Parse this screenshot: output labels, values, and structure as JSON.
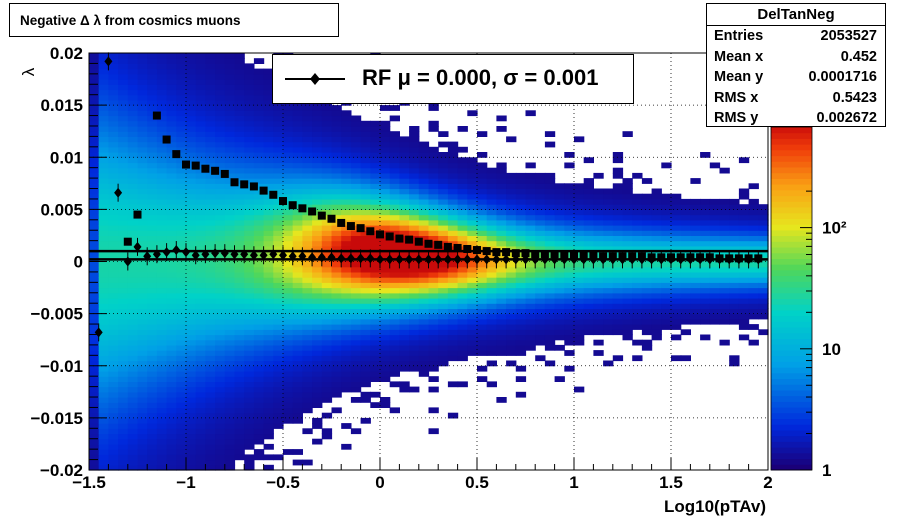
{
  "title": "Negative Δ λ from cosmics muons",
  "stats": {
    "name": "DelTanNeg",
    "rows": [
      {
        "label": "Entries",
        "value": "2053527"
      },
      {
        "label": "Mean x",
        "value": "0.452"
      },
      {
        "label": "Mean y",
        "value": "0.0001716"
      },
      {
        "label": "RMS x",
        "value": "0.5423"
      },
      {
        "label": "RMS y",
        "value": "0.002672"
      }
    ]
  },
  "legend": {
    "label": "RF μ =  0.000, σ =   0.001"
  },
  "chart_data": {
    "type": "heatmap",
    "xlabel": "Log10(pTAv)",
    "ylabel": "λ",
    "xlim": [
      -1.5,
      2
    ],
    "ylim": [
      -0.02,
      0.02
    ],
    "x_ticks": [
      "−1.5",
      "−1",
      "−0.5",
      "0",
      "0.5",
      "1",
      "1.5",
      "2"
    ],
    "y_ticks": [
      "−0.02",
      "−0.015",
      "−0.01",
      "−0.005",
      "0",
      "0.005",
      "0.01",
      "0.015",
      "0.02"
    ],
    "color_scale": {
      "log": true,
      "min": 1,
      "max": 1000,
      "labels": [
        "1",
        "10",
        "10²"
      ]
    },
    "grid": true,
    "series": [
      {
        "marker": "square",
        "x": [
          -1.3,
          -1.25,
          -1.15,
          -1.1,
          -1.05,
          -1.0,
          -0.95,
          -0.9,
          -0.85,
          -0.8,
          -0.75,
          -0.7,
          -0.65,
          -0.6,
          -0.55,
          -0.5,
          -0.45,
          -0.4,
          -0.35,
          -0.3,
          -0.25,
          -0.2,
          -0.15,
          -0.1,
          -0.05,
          0.0,
          0.05,
          0.1,
          0.15,
          0.2,
          0.25,
          0.3,
          0.35,
          0.4,
          0.45,
          0.5,
          0.55,
          0.6,
          0.65,
          0.7,
          0.75,
          0.8,
          0.85,
          0.9,
          0.95,
          1.0,
          1.05,
          1.1,
          1.15,
          1.2,
          1.25,
          1.3,
          1.35,
          1.4,
          1.45,
          1.5,
          1.55,
          1.6,
          1.65,
          1.7,
          1.75,
          1.8,
          1.85,
          1.9,
          1.95
        ],
        "y": [
          0.0019,
          0.0045,
          0.014,
          0.0117,
          0.0103,
          0.0093,
          0.0092,
          0.0089,
          0.0087,
          0.0084,
          0.0076,
          0.0074,
          0.0072,
          0.0068,
          0.0064,
          0.0058,
          0.0054,
          0.0051,
          0.0048,
          0.0044,
          0.0041,
          0.0037,
          0.0034,
          0.0032,
          0.0029,
          0.0026,
          0.0024,
          0.0022,
          0.0021,
          0.0019,
          0.0017,
          0.0016,
          0.0014,
          0.0013,
          0.0012,
          0.0011,
          0.001,
          0.0009,
          0.0009,
          0.0008,
          0.0008,
          0.0007,
          0.0007,
          0.0007,
          0.0006,
          0.0006,
          0.0006,
          0.0006,
          0.0005,
          0.0005,
          0.0005,
          0.0005,
          0.0005,
          0.0004,
          0.0004,
          0.0004,
          0.0004,
          0.0004,
          0.0004,
          0.0004,
          0.0003,
          0.0003,
          0.0003,
          0.0003,
          0.0003
        ]
      },
      {
        "marker": "diamond",
        "x": [
          -1.45,
          -1.4,
          -1.35,
          -1.3,
          -1.25,
          -1.2,
          -1.15,
          -1.1,
          -1.05,
          -1.0,
          -0.95,
          -0.9,
          -0.85,
          -0.8,
          -0.75,
          -0.7,
          -0.65,
          -0.6,
          -0.55,
          -0.5,
          -0.45,
          -0.4,
          -0.35,
          -0.3,
          -0.25,
          -0.2,
          -0.15,
          -0.1,
          -0.05,
          0.0,
          0.05,
          0.1,
          0.15,
          0.2,
          0.25,
          0.3,
          0.35,
          0.4,
          0.45,
          0.5,
          0.55,
          0.6,
          0.65,
          0.7,
          0.75,
          0.8,
          0.85,
          0.9,
          0.95,
          1.0,
          1.05,
          1.1,
          1.15,
          1.2,
          1.25,
          1.3,
          1.35,
          1.4,
          1.45,
          1.5,
          1.55,
          1.6,
          1.65,
          1.7,
          1.75,
          1.8,
          1.85,
          1.9,
          1.95
        ],
        "y": [
          -0.0068,
          0.0192,
          0.0066,
          0.0,
          0.0014,
          0.0005,
          0.0007,
          0.0009,
          0.0011,
          0.0009,
          0.0006,
          0.0007,
          0.0008,
          0.0008,
          0.0007,
          0.0007,
          0.0006,
          0.0006,
          0.0007,
          0.0006,
          0.0005,
          0.0005,
          0.0004,
          0.0004,
          0.0004,
          0.0003,
          0.0003,
          0.0003,
          0.0003,
          0.0002,
          0.0002,
          0.0002,
          0.0002,
          0.0002,
          0.0002,
          0.0002,
          0.0002,
          0.0002,
          0.0002,
          0.0002,
          0.0002,
          0.0002,
          0.0002,
          0.0002,
          0.0002,
          0.0002,
          0.0002,
          0.0002,
          0.0002,
          0.0002,
          0.0002,
          0.0002,
          0.0002,
          0.0002,
          0.0002,
          0.0002,
          0.0002,
          0.0002,
          0.0002,
          0.0002,
          0.0002,
          0.0002,
          0.0002,
          0.0002,
          0.0002,
          0.0002,
          0.0002,
          0.0002,
          0.0002
        ]
      }
    ],
    "reference_lines": [
      0.001,
      0.0002
    ]
  }
}
